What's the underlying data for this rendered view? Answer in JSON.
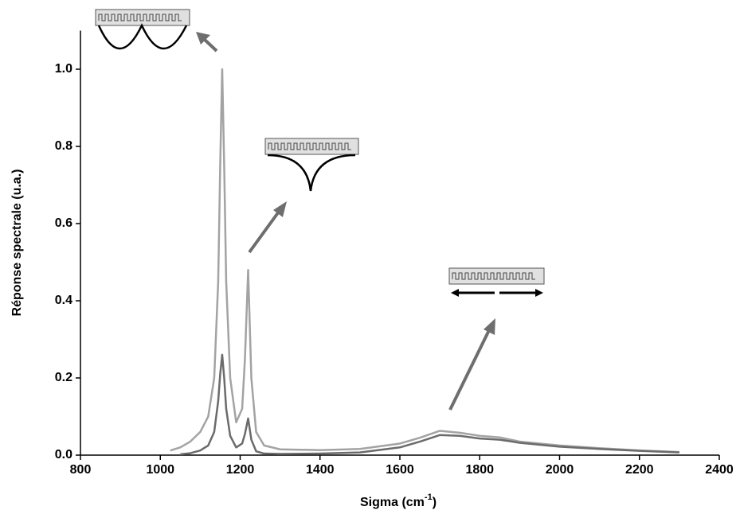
{
  "chart_data": {
    "type": "line",
    "x_label": {
      "text": "Sigma (cm",
      "sup": "-1",
      "close": ")"
    },
    "y_label": "Réponse spectrale (u.a.)",
    "xlim": [
      800,
      2400
    ],
    "xticks": [
      800,
      1000,
      1200,
      1400,
      1600,
      1800,
      2000,
      2200,
      2400
    ],
    "ylim": [
      0,
      1.1
    ],
    "yticks": [
      {
        "value": 0,
        "label": "0.0"
      },
      0.2,
      0.4,
      0.6,
      0.8,
      {
        "value": 1,
        "label": "1.0"
      }
    ],
    "x": [
      1025,
      1050,
      1075,
      1100,
      1120,
      1135,
      1145,
      1150,
      1155,
      1160,
      1165,
      1175,
      1190,
      1205,
      1212,
      1220,
      1228,
      1240,
      1260,
      1300,
      1400,
      1500,
      1600,
      1650,
      1700,
      1750,
      1800,
      1850,
      1900,
      2000,
      2100,
      2200,
      2300
    ],
    "series": [
      {
        "color": "#a3a3a3",
        "values": [
          0.012,
          0.02,
          0.035,
          0.06,
          0.1,
          0.2,
          0.45,
          0.75,
          1.0,
          0.75,
          0.45,
          0.2,
          0.085,
          0.12,
          0.25,
          0.48,
          0.2,
          0.06,
          0.025,
          0.015,
          0.013,
          0.016,
          0.03,
          0.045,
          0.063,
          0.058,
          0.05,
          0.046,
          0.035,
          0.025,
          0.018,
          0.012,
          0.008
        ]
      },
      {
        "color": "#6b6b6b",
        "values": [
          null,
          0.002,
          0.005,
          0.012,
          0.025,
          0.06,
          0.14,
          0.21,
          0.26,
          0.2,
          0.12,
          0.05,
          0.02,
          0.03,
          0.055,
          0.095,
          0.04,
          0.01,
          0.004,
          0.003,
          0.004,
          0.007,
          0.02,
          0.035,
          0.052,
          0.05,
          0.043,
          0.04,
          0.032,
          0.022,
          0.016,
          0.011,
          0.007
        ]
      }
    ]
  }
}
